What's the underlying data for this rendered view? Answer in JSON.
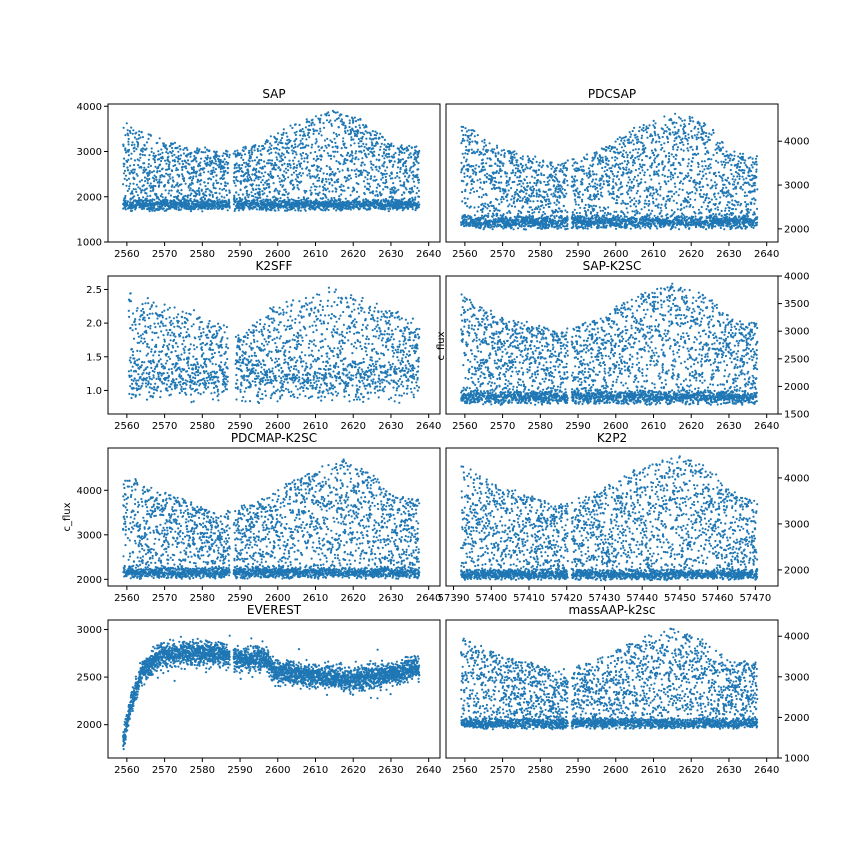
{
  "chart_data": [
    {
      "type": "scatter",
      "title": "SAP",
      "ylabel": "",
      "xlim": [
        2555,
        2643
      ],
      "ylim": [
        1000,
        4050
      ],
      "xticks": [
        "2560",
        "2570",
        "2580",
        "2590",
        "2600",
        "2610",
        "2620",
        "2630",
        "2640"
      ],
      "yticks": [
        "1000",
        "2000",
        "3000",
        "4000"
      ],
      "yaxis_side": "left",
      "x_start": 2559,
      "x_end": 2637.5,
      "gap": [
        2587.3,
        2588.3
      ],
      "baseline": 1820,
      "noise": 90,
      "n_points": 3600,
      "envelope": [
        [
          2559,
          3650
        ],
        [
          2568,
          3300
        ],
        [
          2585,
          3000
        ],
        [
          2595,
          3200
        ],
        [
          2605,
          3650
        ],
        [
          2615,
          3900
        ],
        [
          2622,
          3700
        ],
        [
          2630,
          3200
        ],
        [
          2637,
          3100
        ]
      ],
      "color": "#1f77b4"
    },
    {
      "type": "scatter",
      "title": "PDCSAP",
      "ylabel": "",
      "xlim": [
        2555,
        2643
      ],
      "ylim": [
        1700,
        4850
      ],
      "xticks": [
        "2560",
        "2570",
        "2580",
        "2590",
        "2600",
        "2610",
        "2620",
        "2630",
        "2640"
      ],
      "yticks": [
        "2000",
        "3000",
        "4000"
      ],
      "yaxis_side": "right",
      "x_start": 2559,
      "x_end": 2637.5,
      "gap": [
        2587.3,
        2588.3
      ],
      "baseline": 2150,
      "noise": 110,
      "n_points": 3600,
      "envelope": [
        [
          2559,
          4450
        ],
        [
          2568,
          3900
        ],
        [
          2585,
          3500
        ],
        [
          2595,
          3750
        ],
        [
          2605,
          4300
        ],
        [
          2617,
          4700
        ],
        [
          2625,
          4400
        ],
        [
          2630,
          3800
        ],
        [
          2637,
          3700
        ]
      ],
      "color": "#1f77b4"
    },
    {
      "type": "scatter",
      "title": "K2SFF",
      "ylabel": "",
      "xlim": [
        2555,
        2643
      ],
      "ylim": [
        0.65,
        2.7
      ],
      "xticks": [
        "2560",
        "2570",
        "2580",
        "2590",
        "2600",
        "2610",
        "2620",
        "2630",
        "2640"
      ],
      "yticks": [
        "1.0",
        "1.5",
        "2.0",
        "2.5"
      ],
      "yaxis_side": "left",
      "x_start": 2560.5,
      "x_end": 2637.5,
      "gap": [
        2586.8,
        2588.8
      ],
      "baseline": 1.15,
      "noise": 0.22,
      "n_points": 2200,
      "envelope": [
        [
          2560,
          2.4
        ],
        [
          2570,
          2.3
        ],
        [
          2580,
          2.1
        ],
        [
          2590,
          1.8
        ],
        [
          2600,
          2.3
        ],
        [
          2615,
          2.5
        ],
        [
          2630,
          2.2
        ],
        [
          2637,
          2.0
        ]
      ],
      "color": "#1f77b4"
    },
    {
      "type": "scatter",
      "title": "SAP-K2SC",
      "ylabel": "c_flux",
      "xlim": [
        2555,
        2643
      ],
      "ylim": [
        1500,
        4000
      ],
      "xticks": [
        "2560",
        "2570",
        "2580",
        "2590",
        "2600",
        "2610",
        "2620",
        "2630",
        "2640"
      ],
      "yticks": [
        "1500",
        "2000",
        "2500",
        "3000",
        "3500",
        "4000"
      ],
      "yaxis_side": "right",
      "x_start": 2559,
      "x_end": 2637.5,
      "gap": [
        2587.3,
        2588.3
      ],
      "baseline": 1800,
      "noise": 90,
      "n_points": 3600,
      "envelope": [
        [
          2559,
          3700
        ],
        [
          2568,
          3300
        ],
        [
          2585,
          3000
        ],
        [
          2595,
          3200
        ],
        [
          2605,
          3650
        ],
        [
          2617,
          3900
        ],
        [
          2625,
          3600
        ],
        [
          2630,
          3250
        ],
        [
          2637,
          3150
        ]
      ],
      "color": "#1f77b4"
    },
    {
      "type": "scatter",
      "title": "PDCMAP-K2SC",
      "ylabel": "c_flux",
      "xlim": [
        2555,
        2643
      ],
      "ylim": [
        1850,
        4950
      ],
      "xticks": [
        "2560",
        "2570",
        "2580",
        "2590",
        "2600",
        "2610",
        "2620",
        "2630",
        "2640"
      ],
      "yticks": [
        "2000",
        "3000",
        "4000"
      ],
      "yaxis_side": "left",
      "x_start": 2559,
      "x_end": 2637.5,
      "gap": [
        2587.3,
        2588.3
      ],
      "baseline": 2150,
      "noise": 90,
      "n_points": 3600,
      "envelope": [
        [
          2559,
          4400
        ],
        [
          2568,
          4000
        ],
        [
          2585,
          3500
        ],
        [
          2595,
          3750
        ],
        [
          2605,
          4300
        ],
        [
          2617,
          4700
        ],
        [
          2625,
          4400
        ],
        [
          2630,
          3900
        ],
        [
          2637,
          3800
        ]
      ],
      "color": "#1f77b4"
    },
    {
      "type": "scatter",
      "title": "K2P2",
      "ylabel": "",
      "xlim": [
        57388,
        57476
      ],
      "ylim": [
        1650,
        4650
      ],
      "xticks": [
        "57390",
        "57400",
        "57410",
        "57420",
        "57430",
        "57440",
        "57450",
        "57460",
        "57470"
      ],
      "yticks": [
        "2000",
        "3000",
        "4000"
      ],
      "yaxis_side": "right",
      "x_start": 57392,
      "x_end": 57470.5,
      "gap": [
        57420.3,
        57421.3
      ],
      "baseline": 1900,
      "noise": 80,
      "n_points": 3600,
      "envelope": [
        [
          57392,
          4300
        ],
        [
          57400,
          3900
        ],
        [
          57418,
          3400
        ],
        [
          57428,
          3700
        ],
        [
          57438,
          4200
        ],
        [
          57450,
          4500
        ],
        [
          57458,
          4200
        ],
        [
          57465,
          3650
        ],
        [
          57470,
          3500
        ]
      ],
      "color": "#1f77b4"
    },
    {
      "type": "scatter",
      "title": "EVEREST",
      "ylabel": "",
      "xlim": [
        2555,
        2643
      ],
      "ylim": [
        1650,
        3100
      ],
      "xticks": [
        "2560",
        "2570",
        "2580",
        "2590",
        "2600",
        "2610",
        "2620",
        "2630",
        "2640"
      ],
      "yticks": [
        "2000",
        "2500",
        "3000"
      ],
      "yaxis_side": "left",
      "x_start": 2559,
      "x_end": 2637.5,
      "gap": [
        2587.3,
        2588.3
      ],
      "trend": [
        [
          2559,
          1800
        ],
        [
          2561,
          2200
        ],
        [
          2564,
          2550
        ],
        [
          2568,
          2700
        ],
        [
          2575,
          2750
        ],
        [
          2585,
          2750
        ],
        [
          2590,
          2680
        ],
        [
          2597,
          2700
        ],
        [
          2599,
          2550
        ],
        [
          2610,
          2520
        ],
        [
          2620,
          2470
        ],
        [
          2630,
          2530
        ],
        [
          2637,
          2600
        ]
      ],
      "noise": 85,
      "n_points": 3400,
      "color": "#1f77b4"
    },
    {
      "type": "scatter",
      "title": "massAAP-k2sc",
      "ylabel": "",
      "xlim": [
        2555,
        2643
      ],
      "ylim": [
        1000,
        4400
      ],
      "xticks": [
        "2560",
        "2570",
        "2580",
        "2590",
        "2600",
        "2610",
        "2620",
        "2630",
        "2640"
      ],
      "yticks": [
        "1000",
        "2000",
        "3000",
        "4000"
      ],
      "yaxis_side": "right",
      "x_start": 2559,
      "x_end": 2637.5,
      "gap": [
        2587.3,
        2588.3
      ],
      "baseline": 1850,
      "noise": 90,
      "n_points": 3600,
      "envelope": [
        [
          2559,
          4000
        ],
        [
          2568,
          3600
        ],
        [
          2585,
          3150
        ],
        [
          2595,
          3400
        ],
        [
          2605,
          3900
        ],
        [
          2614,
          4200
        ],
        [
          2622,
          4000
        ],
        [
          2630,
          3400
        ],
        [
          2637,
          3350
        ]
      ],
      "color": "#1f77b4"
    }
  ]
}
